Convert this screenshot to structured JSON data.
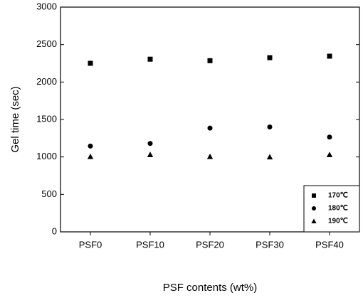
{
  "chart_data": {
    "type": "scatter",
    "x_label": "PSF contents (wt%)",
    "y_label": "Gel time (sec)",
    "categories": [
      "PSF0",
      "PSF10",
      "PSF20",
      "PSF30",
      "PSF40"
    ],
    "series": [
      {
        "name": "170℃",
        "color": "#000000",
        "marker": "square",
        "values": [
          2250,
          2305,
          2285,
          2325,
          2345
        ]
      },
      {
        "name": "180℃",
        "color": "#000000",
        "marker": "circle",
        "values": [
          1145,
          1180,
          1385,
          1400,
          1265
        ]
      },
      {
        "name": "190℃",
        "color": "#000000",
        "marker": "triangle",
        "values": [
          1005,
          1030,
          1005,
          1000,
          1030
        ]
      }
    ],
    "ylim": [
      0,
      3000
    ],
    "yticks": [
      0,
      500,
      1000,
      1500,
      2000,
      2500,
      3000
    ],
    "legend": "lower right",
    "grid": false
  }
}
